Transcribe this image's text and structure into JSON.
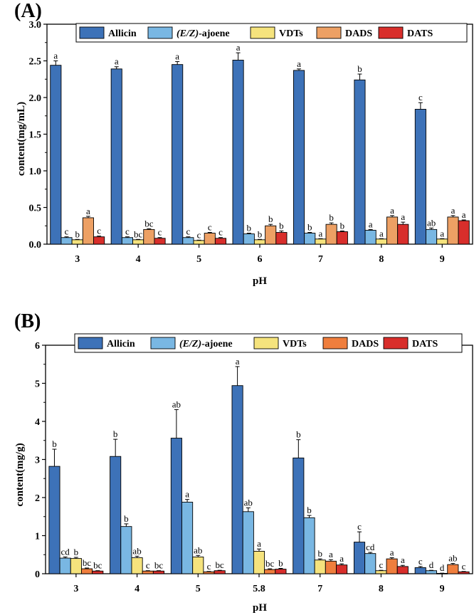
{
  "chart_data": [
    {
      "panel": "(A)",
      "type": "bar",
      "xlabel": "pH",
      "ylabel": "content(mg/mL)",
      "ylim": [
        0,
        3.0
      ],
      "yticks": [
        "0.0",
        "0.5",
        "1.0",
        "1.5",
        "2.0",
        "2.5",
        "3.0"
      ],
      "categories": [
        "3",
        "4",
        "5",
        "6",
        "7",
        "8",
        "9"
      ],
      "legend": {
        "placement": "top",
        "entries": [
          {
            "label": "Allicin",
            "italic": ""
          },
          {
            "label": "-ajoene",
            "italic": "(E/Z)"
          },
          {
            "label": "VDTs",
            "italic": ""
          },
          {
            "label": "DADS",
            "italic": ""
          },
          {
            "label": "DATS",
            "italic": ""
          }
        ]
      },
      "series": [
        {
          "name": "Allicin",
          "color": "#3d72b8",
          "values": [
            2.44,
            2.39,
            2.45,
            2.51,
            2.37,
            2.24,
            1.84
          ],
          "errors": [
            0.06,
            0.03,
            0.04,
            0.1,
            0.02,
            0.08,
            0.09
          ],
          "labels": [
            "a",
            "a",
            "a",
            "a",
            "a",
            "b",
            "c"
          ]
        },
        {
          "name": "(E/Z)-ajoene",
          "color": "#79b7e3",
          "values": [
            0.09,
            0.09,
            0.09,
            0.14,
            0.15,
            0.19,
            0.2
          ],
          "errors": [
            0.01,
            0.01,
            0.01,
            0.01,
            0.01,
            0.01,
            0.02
          ],
          "labels": [
            "c",
            "c",
            "c",
            "b",
            "b",
            "a",
            "ab"
          ]
        },
        {
          "name": "VDTs",
          "color": "#f5e37d",
          "values": [
            0.06,
            0.06,
            0.05,
            0.06,
            0.07,
            0.07,
            0.07
          ],
          "errors": [
            0.005,
            0.005,
            0.005,
            0.005,
            0.005,
            0.005,
            0.005
          ],
          "labels": [
            "b",
            "bc",
            "c",
            "b",
            "a",
            "a",
            "a"
          ]
        },
        {
          "name": "DADS",
          "color": "#eda064",
          "values": [
            0.36,
            0.2,
            0.15,
            0.25,
            0.27,
            0.37,
            0.37
          ],
          "errors": [
            0.02,
            0.01,
            0.01,
            0.02,
            0.02,
            0.02,
            0.02
          ],
          "labels": [
            "a",
            "bc",
            "c",
            "b",
            "b",
            "a",
            "a"
          ]
        },
        {
          "name": "DATS",
          "color": "#d82e2b",
          "values": [
            0.1,
            0.08,
            0.08,
            0.16,
            0.17,
            0.27,
            0.32
          ],
          "errors": [
            0.01,
            0.01,
            0.01,
            0.02,
            0.01,
            0.03,
            0.01
          ],
          "labels": [
            "c",
            "c",
            "c",
            "b",
            "b",
            "a",
            "a"
          ]
        }
      ]
    },
    {
      "panel": "(B)",
      "type": "bar",
      "xlabel": "pH",
      "ylabel": "content(mg/g)",
      "ylim": [
        0,
        6
      ],
      "yticks": [
        "0",
        "1",
        "2",
        "3",
        "4",
        "5",
        "6"
      ],
      "categories": [
        "3",
        "4",
        "5",
        "5.8",
        "7",
        "8",
        "9"
      ],
      "legend": {
        "placement": "top",
        "entries": [
          {
            "label": "Allicin",
            "italic": ""
          },
          {
            "label": "-ajoene",
            "italic": "(E/Z)"
          },
          {
            "label": "VDTs",
            "italic": ""
          },
          {
            "label": "DADS",
            "italic": ""
          },
          {
            "label": "DATS",
            "italic": ""
          }
        ]
      },
      "series": [
        {
          "name": "Allicin",
          "color": "#3d72b8",
          "values": [
            2.82,
            3.08,
            3.56,
            4.94,
            3.04,
            0.83,
            0.16
          ],
          "errors": [
            0.45,
            0.45,
            0.75,
            0.5,
            0.48,
            0.27,
            0.03
          ],
          "labels": [
            "b",
            "b",
            "ab",
            "a",
            "b",
            "c",
            "c"
          ]
        },
        {
          "name": "(E/Z)-ajoene",
          "color": "#79b7e3",
          "values": [
            0.41,
            1.24,
            1.88,
            1.63,
            1.47,
            0.53,
            0.08
          ],
          "errors": [
            0.03,
            0.07,
            0.07,
            0.1,
            0.06,
            0.03,
            0.01
          ],
          "labels": [
            "cd",
            "b",
            "a",
            "ab",
            "b",
            "cd",
            "d"
          ]
        },
        {
          "name": "VDTs",
          "color": "#f5e37d",
          "values": [
            0.4,
            0.42,
            0.44,
            0.59,
            0.36,
            0.08,
            0.01
          ],
          "errors": [
            0.03,
            0.04,
            0.04,
            0.06,
            0.03,
            0.01,
            0.005
          ],
          "labels": [
            "b",
            "ab",
            "ab",
            "a",
            "b",
            "c",
            "d"
          ]
        },
        {
          "name": "DADS",
          "color": "#ef7e3d",
          "values": [
            0.13,
            0.07,
            0.05,
            0.11,
            0.33,
            0.39,
            0.24
          ],
          "errors": [
            0.02,
            0.01,
            0.01,
            0.02,
            0.04,
            0.03,
            0.03
          ],
          "labels": [
            "bc",
            "c",
            "c",
            "bc",
            "a",
            "a",
            "ab"
          ]
        },
        {
          "name": "DATS",
          "color": "#d82e2b",
          "values": [
            0.07,
            0.07,
            0.08,
            0.12,
            0.23,
            0.19,
            0.05
          ],
          "errors": [
            0.01,
            0.01,
            0.01,
            0.02,
            0.03,
            0.03,
            0.01
          ],
          "labels": [
            "bc",
            "bc",
            "bc",
            "b",
            "a",
            "a",
            "c"
          ]
        }
      ]
    }
  ]
}
